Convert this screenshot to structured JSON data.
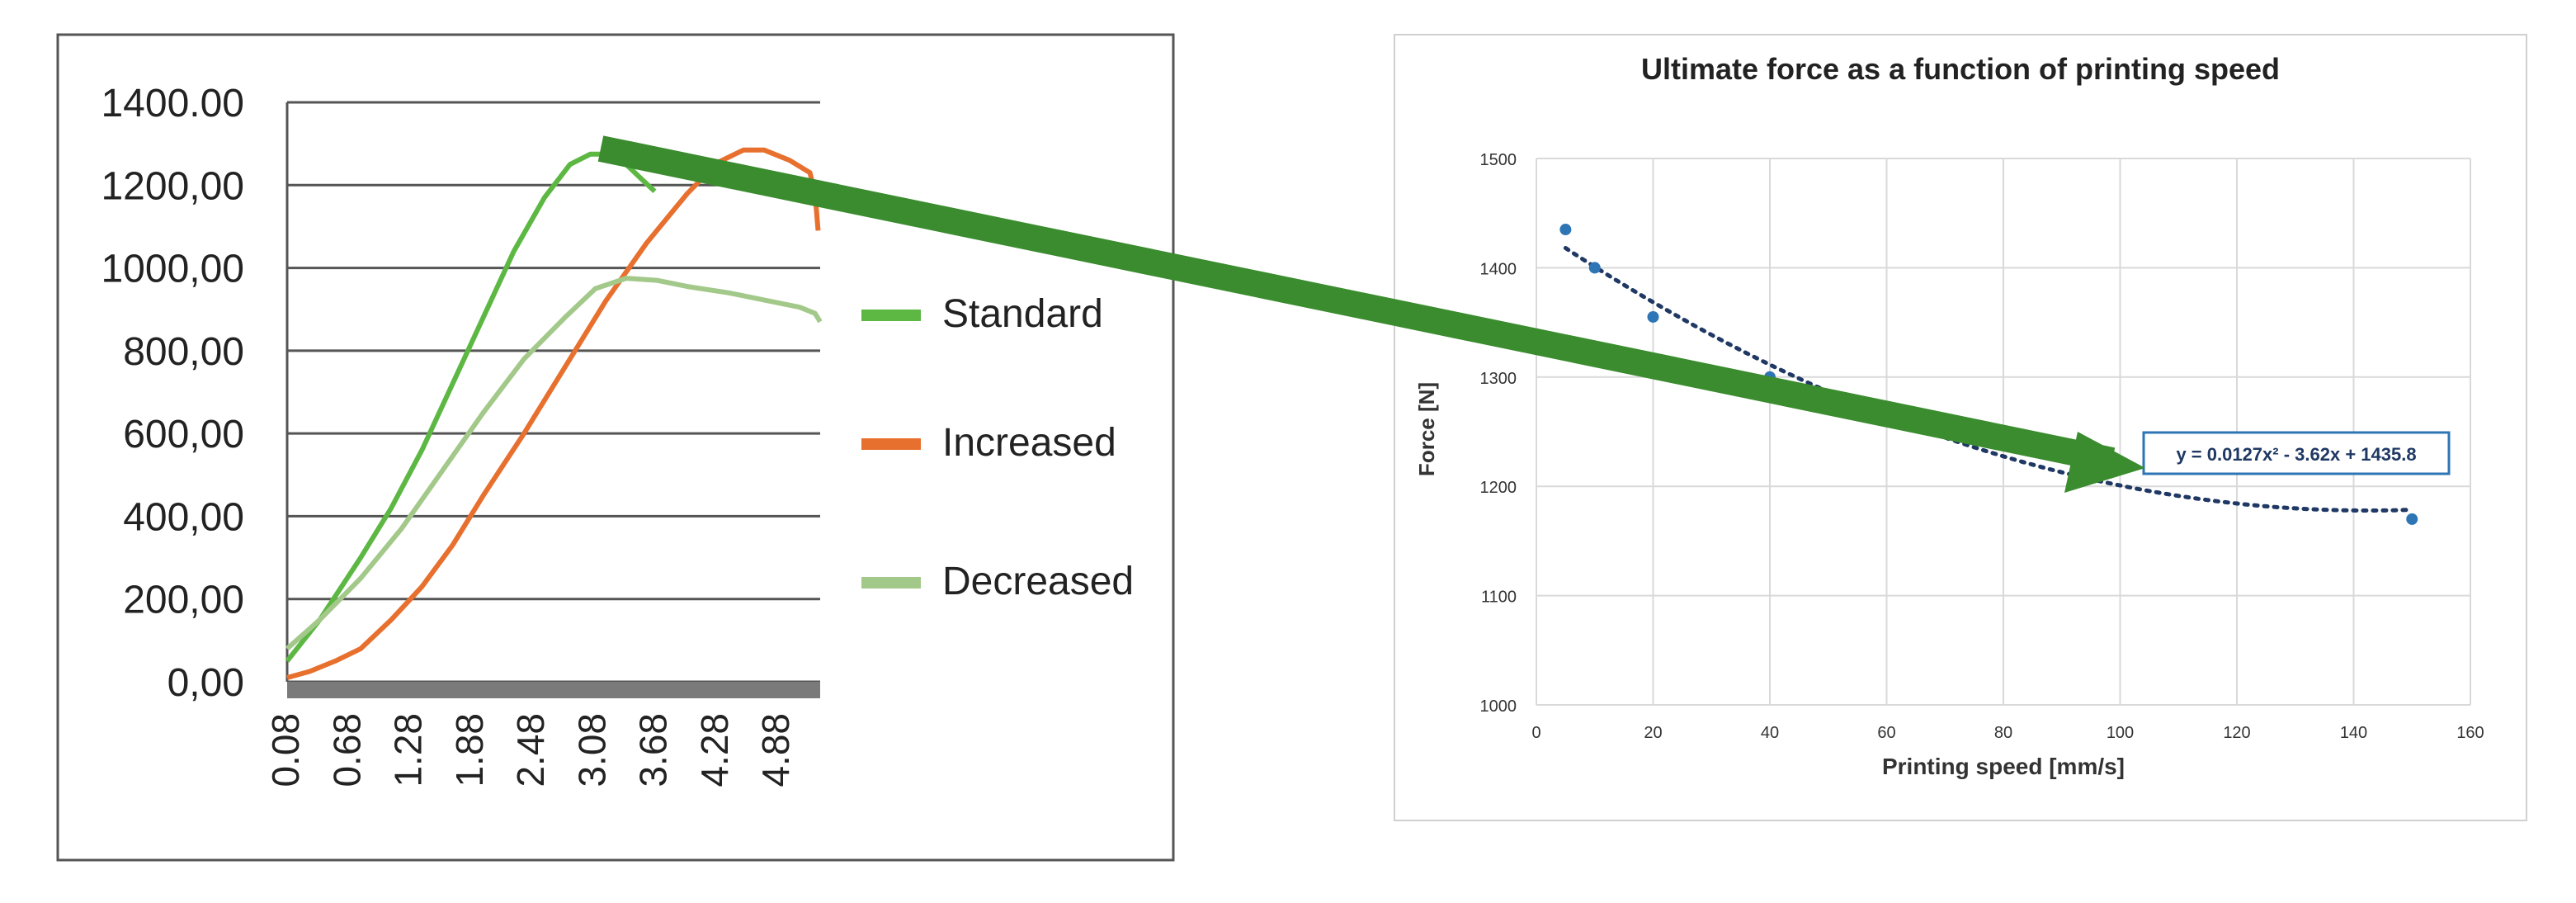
{
  "chart_data": [
    {
      "type": "line",
      "title": "",
      "xlabel": "",
      "ylabel": "",
      "x_tick_labels": [
        "0.08",
        "0.68",
        "1.28",
        "1.88",
        "2.48",
        "3.08",
        "3.68",
        "4.28",
        "4.88"
      ],
      "x_ticks": [
        0.08,
        0.68,
        1.28,
        1.88,
        2.48,
        3.08,
        3.68,
        4.28,
        4.88
      ],
      "xlim": [
        0.08,
        5.3
      ],
      "y_tick_labels": [
        "0,00",
        "200,00",
        "400,00",
        "600,00",
        "800,00",
        "1000,00",
        "1200,00",
        "1400.00"
      ],
      "y_ticks": [
        0,
        200,
        400,
        600,
        800,
        1000,
        1200,
        1400
      ],
      "ylim": [
        0,
        1400
      ],
      "grid": "horizontal",
      "legend_position": "right",
      "series": [
        {
          "name": "Standard",
          "color": "#5cb843",
          "points": [
            [
              0.08,
              50
            ],
            [
              0.4,
              150
            ],
            [
              0.8,
              300
            ],
            [
              1.1,
              420
            ],
            [
              1.4,
              560
            ],
            [
              1.7,
              720
            ],
            [
              2.0,
              880
            ],
            [
              2.3,
              1040
            ],
            [
              2.6,
              1170
            ],
            [
              2.85,
              1250
            ],
            [
              3.05,
              1275
            ],
            [
              3.2,
              1275
            ],
            [
              3.4,
              1250
            ],
            [
              3.55,
              1215
            ],
            [
              3.68,
              1185
            ]
          ]
        },
        {
          "name": "Increased",
          "color": "#e8702e",
          "points": [
            [
              0.08,
              10
            ],
            [
              0.3,
              25
            ],
            [
              0.55,
              50
            ],
            [
              0.8,
              80
            ],
            [
              1.1,
              150
            ],
            [
              1.4,
              230
            ],
            [
              1.7,
              330
            ],
            [
              2.0,
              450
            ],
            [
              2.4,
              600
            ],
            [
              2.8,
              760
            ],
            [
              3.2,
              920
            ],
            [
              3.6,
              1060
            ],
            [
              4.0,
              1180
            ],
            [
              4.3,
              1255
            ],
            [
              4.55,
              1285
            ],
            [
              4.75,
              1285
            ],
            [
              5.0,
              1260
            ],
            [
              5.2,
              1230
            ],
            [
              5.25,
              1180
            ],
            [
              5.28,
              1090
            ]
          ]
        },
        {
          "name": "Decreased",
          "color": "#a3c98a",
          "points": [
            [
              0.08,
              80
            ],
            [
              0.4,
              150
            ],
            [
              0.8,
              250
            ],
            [
              1.2,
              370
            ],
            [
              1.6,
              510
            ],
            [
              2.0,
              650
            ],
            [
              2.4,
              780
            ],
            [
              2.8,
              880
            ],
            [
              3.1,
              950
            ],
            [
              3.4,
              975
            ],
            [
              3.7,
              970
            ],
            [
              4.0,
              955
            ],
            [
              4.4,
              940
            ],
            [
              4.8,
              920
            ],
            [
              5.1,
              905
            ],
            [
              5.25,
              890
            ],
            [
              5.3,
              870
            ]
          ]
        }
      ]
    },
    {
      "type": "scatter",
      "title": "Ultimate force as a function of printing speed",
      "xlabel": "Printing speed [mm/s]",
      "ylabel": "Force [N]",
      "xlim": [
        0,
        160
      ],
      "ylim": [
        1000,
        1500
      ],
      "x_ticks": [
        0,
        20,
        40,
        60,
        80,
        100,
        120,
        140,
        160
      ],
      "y_ticks": [
        1000,
        1100,
        1200,
        1300,
        1400,
        1500
      ],
      "grid": "both",
      "point_color": "#2e75b6",
      "points": [
        [
          5,
          1435
        ],
        [
          10,
          1400
        ],
        [
          20,
          1355
        ],
        [
          40,
          1300
        ],
        [
          150,
          1170
        ]
      ],
      "trendline": {
        "type": "polynomial",
        "coefficients": {
          "a": 0.0127,
          "b": -3.62,
          "c": 1435.8
        },
        "x_range": [
          5,
          150
        ],
        "color": "#1f3864",
        "equation_label": "y = 0.0127x² - 3.62x + 1435.8"
      }
    }
  ],
  "arrow": {
    "color": "#3a8c2e",
    "from": "top of Standard curve (left chart)",
    "to": "trendline equation label (right chart)"
  }
}
